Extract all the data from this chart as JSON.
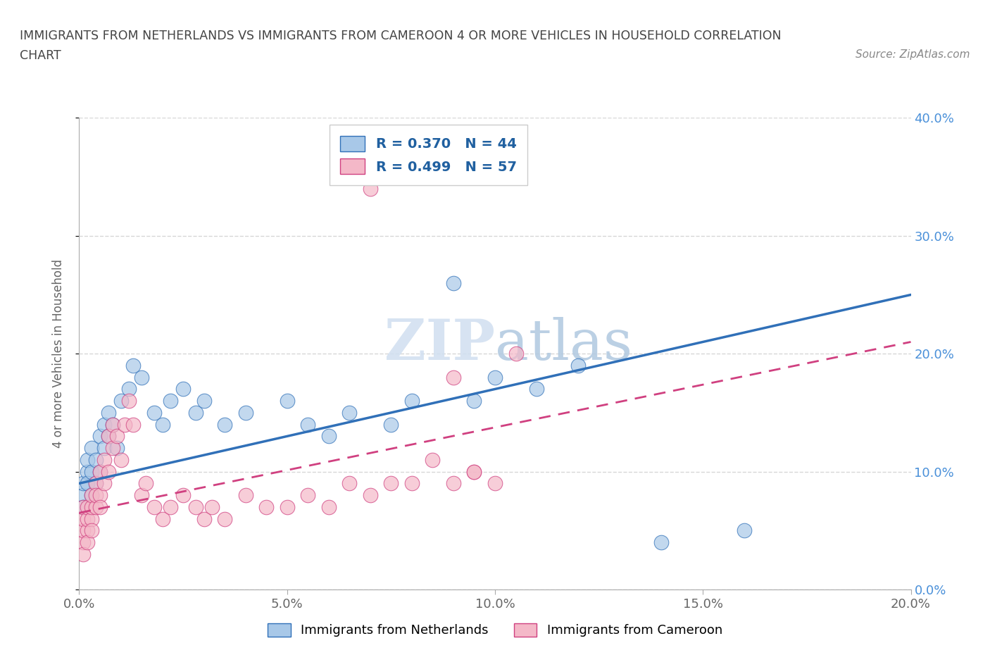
{
  "title_line1": "IMMIGRANTS FROM NETHERLANDS VS IMMIGRANTS FROM CAMEROON 4 OR MORE VEHICLES IN HOUSEHOLD CORRELATION",
  "title_line2": "CHART",
  "source": "Source: ZipAtlas.com",
  "ylabel": "4 or more Vehicles in Household",
  "r_netherlands": 0.37,
  "n_netherlands": 44,
  "r_cameroon": 0.499,
  "n_cameroon": 57,
  "color_netherlands": "#a8c8e8",
  "color_cameroon": "#f4b8c8",
  "line_color_netherlands": "#3070b8",
  "line_color_cameroon": "#d04080",
  "background_color": "#ffffff",
  "xlim": [
    0.0,
    0.2
  ],
  "ylim": [
    0.0,
    0.4
  ],
  "xticks": [
    0.0,
    0.05,
    0.1,
    0.15,
    0.2
  ],
  "yticks": [
    0.0,
    0.1,
    0.2,
    0.3,
    0.4
  ],
  "watermark": "ZIPatlas",
  "nl_line_x0": 0.0,
  "nl_line_y0": 0.09,
  "nl_line_x1": 0.2,
  "nl_line_y1": 0.25,
  "cm_line_x0": 0.0,
  "cm_line_y0": 0.065,
  "cm_line_x1": 0.2,
  "cm_line_y1": 0.21,
  "netherlands_x": [
    0.001,
    0.001,
    0.001,
    0.002,
    0.002,
    0.002,
    0.003,
    0.003,
    0.003,
    0.004,
    0.004,
    0.005,
    0.005,
    0.006,
    0.006,
    0.007,
    0.007,
    0.008,
    0.009,
    0.01,
    0.012,
    0.013,
    0.015,
    0.018,
    0.02,
    0.022,
    0.025,
    0.028,
    0.03,
    0.035,
    0.04,
    0.05,
    0.055,
    0.06,
    0.065,
    0.075,
    0.08,
    0.09,
    0.095,
    0.1,
    0.11,
    0.12,
    0.14,
    0.16
  ],
  "netherlands_y": [
    0.08,
    0.09,
    0.07,
    0.1,
    0.11,
    0.09,
    0.12,
    0.1,
    0.08,
    0.11,
    0.09,
    0.13,
    0.1,
    0.14,
    0.12,
    0.15,
    0.13,
    0.14,
    0.12,
    0.16,
    0.17,
    0.19,
    0.18,
    0.15,
    0.14,
    0.16,
    0.17,
    0.15,
    0.16,
    0.14,
    0.15,
    0.16,
    0.14,
    0.13,
    0.15,
    0.14,
    0.16,
    0.26,
    0.16,
    0.18,
    0.17,
    0.19,
    0.04,
    0.05
  ],
  "cameroon_x": [
    0.001,
    0.001,
    0.001,
    0.001,
    0.001,
    0.002,
    0.002,
    0.002,
    0.002,
    0.003,
    0.003,
    0.003,
    0.003,
    0.004,
    0.004,
    0.004,
    0.005,
    0.005,
    0.005,
    0.006,
    0.006,
    0.007,
    0.007,
    0.008,
    0.008,
    0.009,
    0.01,
    0.011,
    0.012,
    0.013,
    0.015,
    0.016,
    0.018,
    0.02,
    0.022,
    0.025,
    0.028,
    0.03,
    0.032,
    0.035,
    0.04,
    0.045,
    0.05,
    0.055,
    0.06,
    0.065,
    0.07,
    0.075,
    0.08,
    0.085,
    0.09,
    0.095,
    0.1,
    0.105,
    0.07,
    0.095,
    0.09
  ],
  "cameroon_y": [
    0.04,
    0.05,
    0.06,
    0.03,
    0.07,
    0.05,
    0.06,
    0.04,
    0.07,
    0.06,
    0.07,
    0.05,
    0.08,
    0.07,
    0.09,
    0.08,
    0.08,
    0.1,
    0.07,
    0.09,
    0.11,
    0.1,
    0.13,
    0.12,
    0.14,
    0.13,
    0.11,
    0.14,
    0.16,
    0.14,
    0.08,
    0.09,
    0.07,
    0.06,
    0.07,
    0.08,
    0.07,
    0.06,
    0.07,
    0.06,
    0.08,
    0.07,
    0.07,
    0.08,
    0.07,
    0.09,
    0.08,
    0.09,
    0.09,
    0.11,
    0.18,
    0.1,
    0.09,
    0.2,
    0.34,
    0.1,
    0.09
  ]
}
